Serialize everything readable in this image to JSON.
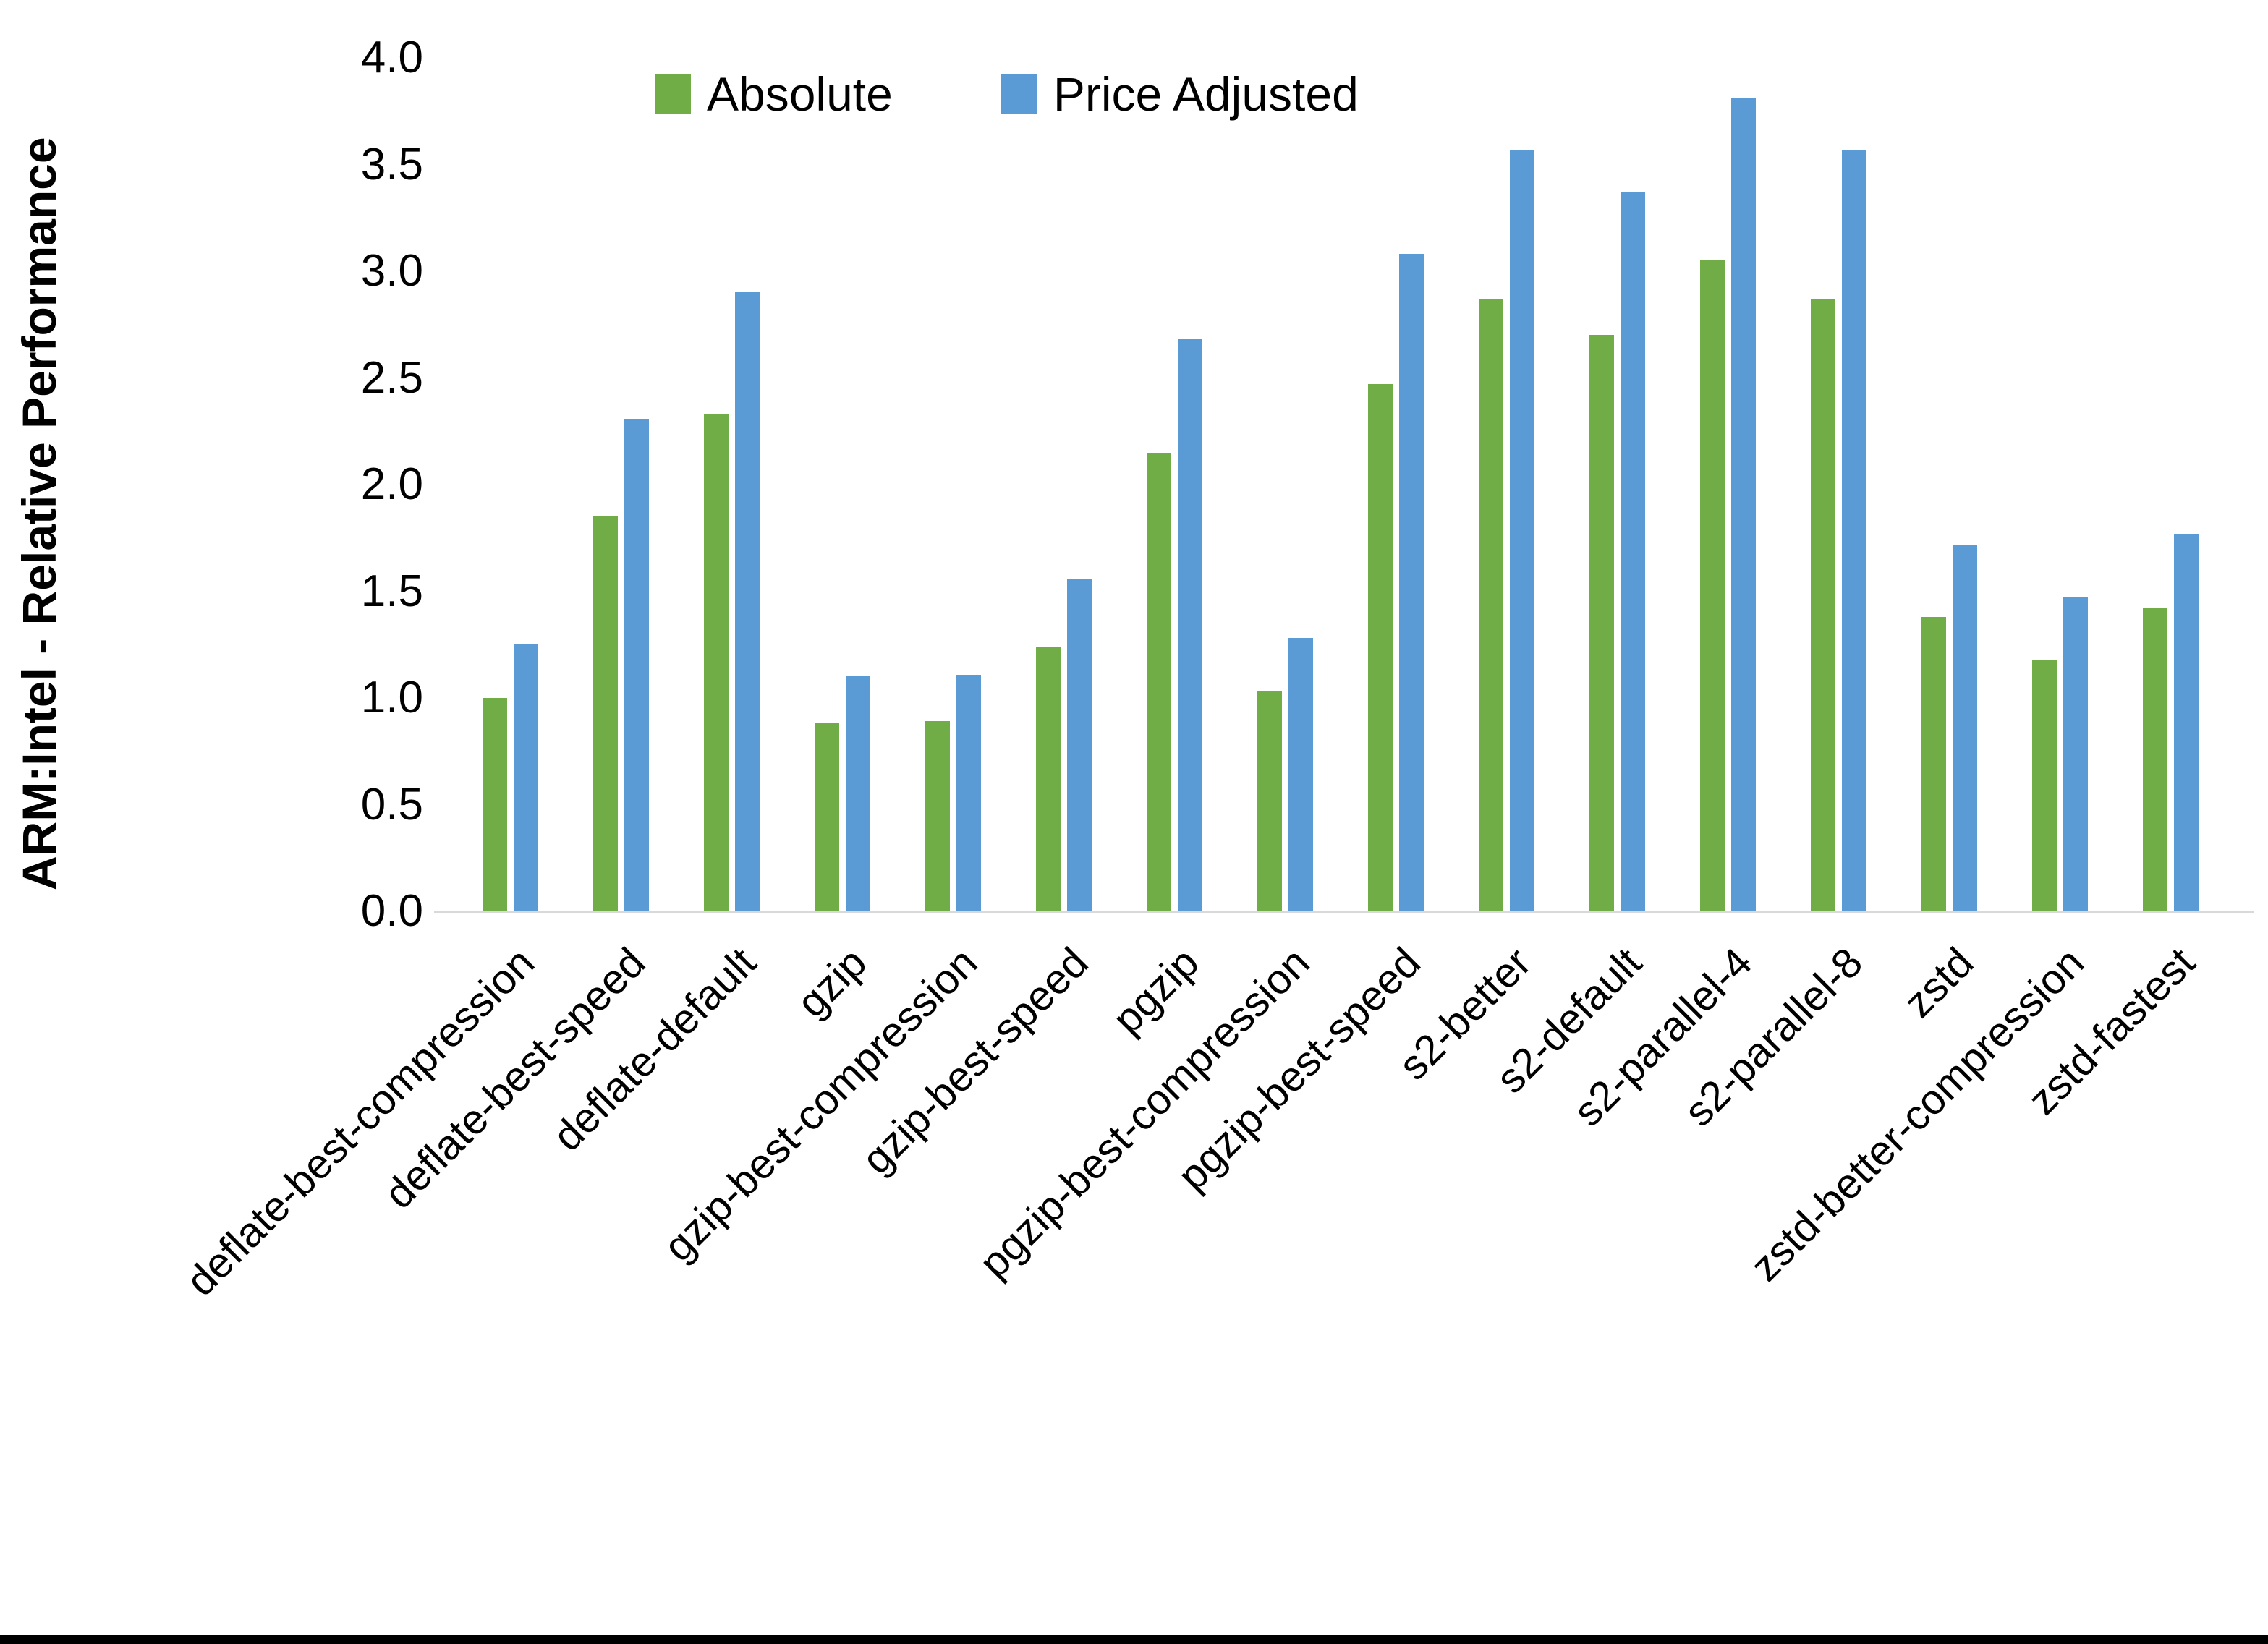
{
  "chart_data": {
    "type": "bar",
    "title": "",
    "xlabel": "",
    "ylabel": "ARM:Intel - Relative Performance",
    "ylim": [
      0.0,
      4.0
    ],
    "ytick_step": 0.5,
    "yticks": [
      "4.0",
      "3.5",
      "3.0",
      "2.5",
      "2.0",
      "1.5",
      "1.0",
      "0.5",
      "0.0"
    ],
    "grid": false,
    "legend_position": "top-center",
    "axis_line_color": "#D9D9D9",
    "categories": [
      "deflate-best-compression",
      "deflate-best-speed",
      "deflate-default",
      "gzip",
      "gzip-best-compression",
      "gzip-best-speed",
      "pgzip",
      "pgzip-best-compression",
      "pgzip-best-speed",
      "s2-better",
      "s2-default",
      "s2-parallel-4",
      "s2-parallel-8",
      "zstd",
      "zstd-better-compression",
      "zstd-fastest"
    ],
    "series": [
      {
        "name": "Absolute",
        "color": "#70AD47",
        "values": [
          1.0,
          1.85,
          2.33,
          0.88,
          0.89,
          1.24,
          2.15,
          1.03,
          2.47,
          2.87,
          2.7,
          3.05,
          2.87,
          1.38,
          1.18,
          1.42
        ]
      },
      {
        "name": "Price Adjusted",
        "color": "#5B9BD5",
        "values": [
          1.25,
          2.31,
          2.9,
          1.1,
          1.11,
          1.56,
          2.68,
          1.28,
          3.08,
          3.57,
          3.37,
          3.81,
          3.57,
          1.72,
          1.47,
          1.77
        ]
      }
    ]
  }
}
